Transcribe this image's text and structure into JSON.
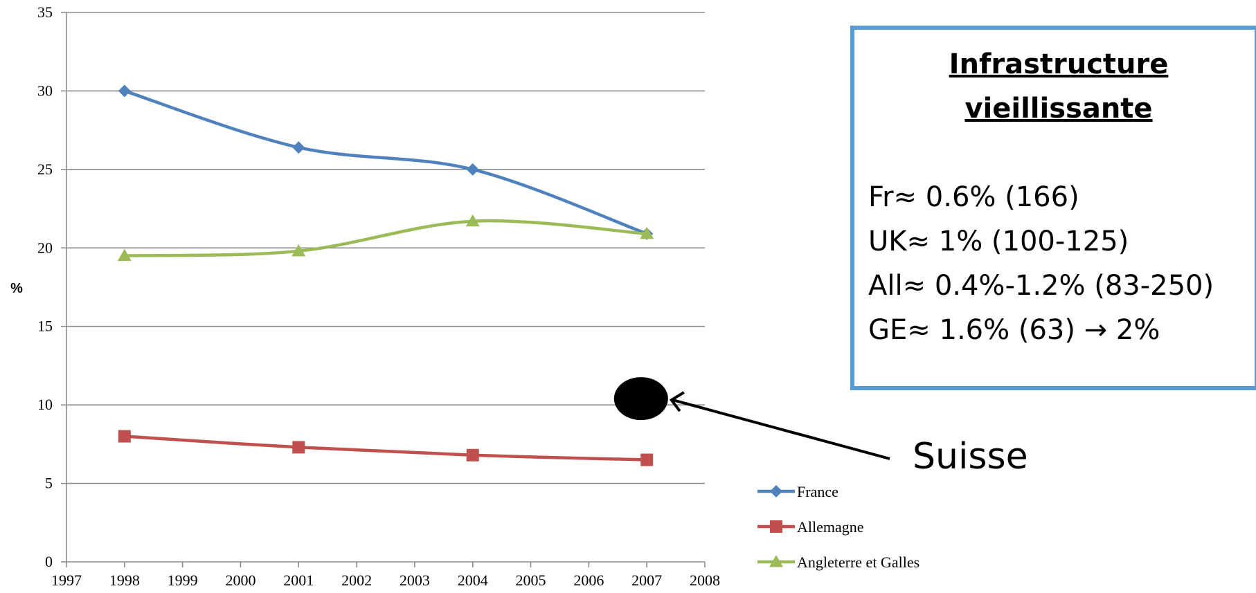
{
  "chart_data": {
    "type": "line",
    "x": [
      1998,
      2001,
      2004,
      2007
    ],
    "series": [
      {
        "name": "France",
        "values": [
          30,
          26.4,
          25,
          20.9
        ],
        "color": "#4f81bd",
        "marker": "diamond"
      },
      {
        "name": "Allemagne",
        "values": [
          8,
          7.3,
          6.8,
          6.5
        ],
        "color": "#c0504d",
        "marker": "square"
      },
      {
        "name": "Angleterre et Galles",
        "values": [
          19.5,
          19.8,
          21.7,
          20.9
        ],
        "color": "#9bbb59",
        "marker": "triangle"
      }
    ],
    "xlim": [
      1997,
      2008
    ],
    "ylim": [
      0,
      35
    ],
    "xticks": [
      "1997",
      "1998",
      "1999",
      "2000",
      "2001",
      "2002",
      "2003",
      "2004",
      "2005",
      "2006",
      "2007",
      "2008"
    ],
    "yticks": [
      "0",
      "5",
      "10",
      "15",
      "20",
      "25",
      "30",
      "35"
    ],
    "ylabel": "%",
    "xlabel": "",
    "grid": true,
    "legend": "bottom-right",
    "annotations": [
      {
        "label": "Suisse",
        "x": 2006.9,
        "y": 10.4,
        "marker": "black-dot",
        "color": "#000000"
      }
    ]
  },
  "infobox": {
    "title": [
      "Infrastructure",
      "vieillissante"
    ],
    "lines": [
      "Fr≈ 0.6% (166)",
      "UK≈ 1% (100-125)",
      "All≈ 0.4%-1.2% (83-250)",
      "GE≈ 1.6% (63) → 2%"
    ],
    "border_color": "#5b9bd5"
  }
}
